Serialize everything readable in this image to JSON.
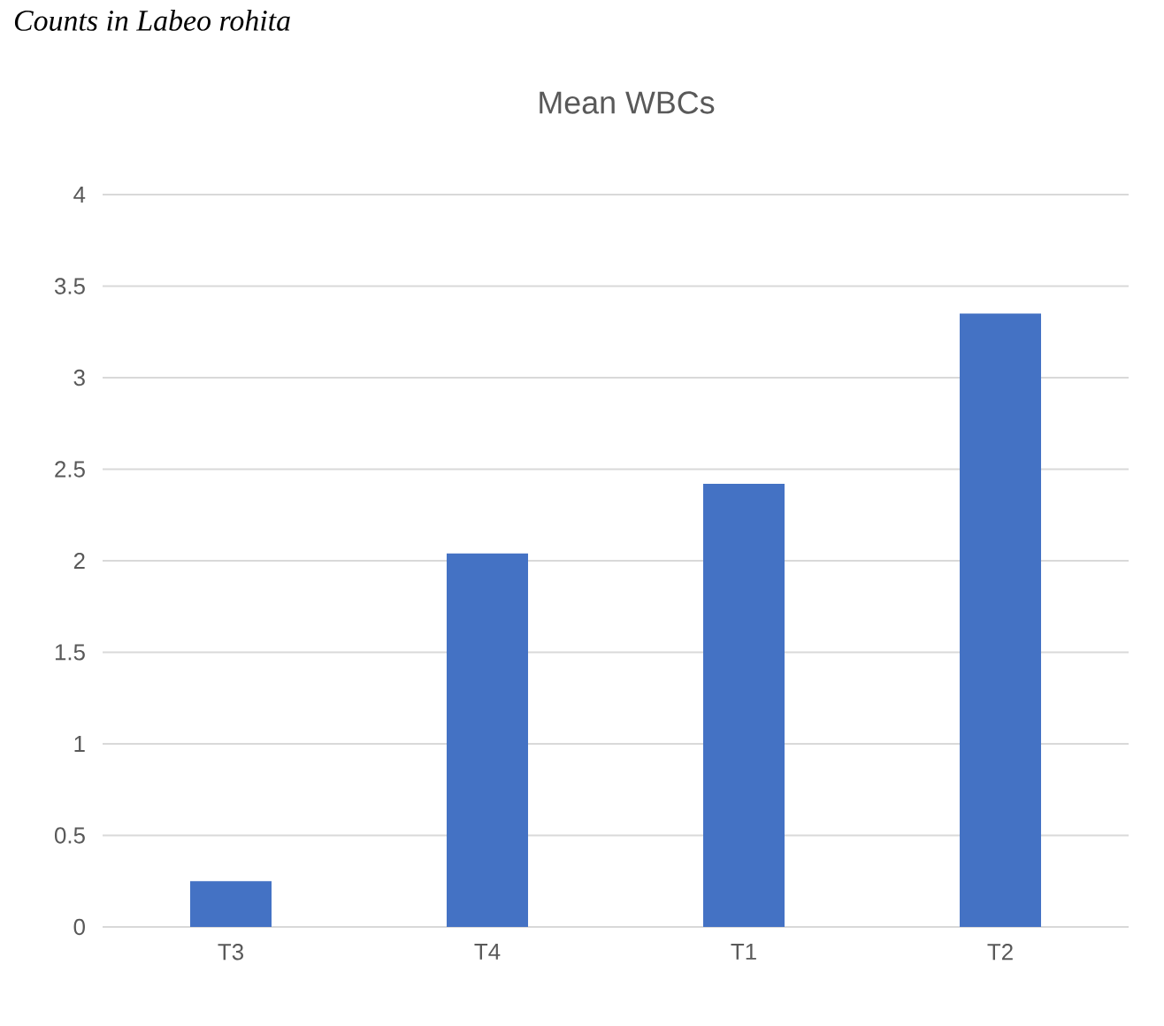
{
  "chart_data": {
    "type": "bar",
    "title": "Mean WBCs",
    "annotations": [
      "Counts in Labeo rohita"
    ],
    "categories": [
      "T3",
      "T4",
      "T1",
      "T2"
    ],
    "values": [
      0.25,
      2.04,
      2.42,
      3.35
    ],
    "color": "#4472c4",
    "ylim": [
      0,
      4
    ],
    "yticks": [
      0,
      0.5,
      1,
      1.5,
      2,
      2.5,
      3,
      3.5,
      4
    ],
    "grid": true
  }
}
